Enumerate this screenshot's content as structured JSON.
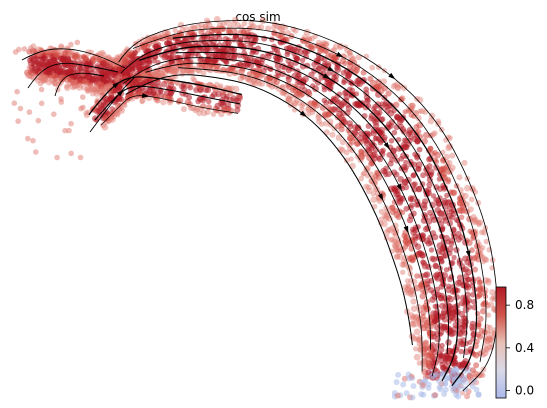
{
  "chart_data": {
    "type": "scatter",
    "title": "cos sim",
    "xlabel": "",
    "ylabel": "",
    "grid": false,
    "colorbar": {
      "ticks": [
        0.0,
        0.4,
        0.8
      ],
      "tick_labels": [
        "0.0",
        "0.4",
        "0.8"
      ],
      "range": [
        -0.07,
        0.97
      ],
      "colors": [
        "#aab8ea",
        "#d9d9e8",
        "#e8c0b4",
        "#d0524a",
        "#b01c25"
      ]
    },
    "point_color_note": "cos sim value per cell",
    "colors": {
      "high": "#b41d28",
      "mid": "#d44d45",
      "edge": "#e07a72",
      "low": "#aabbe8",
      "stream": "#000000"
    }
  }
}
